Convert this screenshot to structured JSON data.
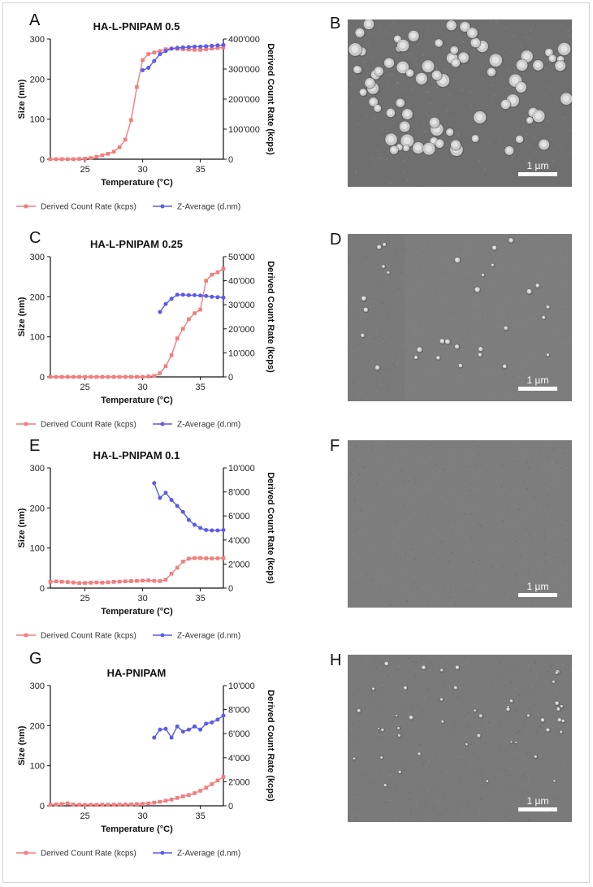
{
  "panel_letters": [
    "A",
    "B",
    "C",
    "D",
    "E",
    "F",
    "G",
    "H"
  ],
  "legend": {
    "red_label": "Derived Count Rate (kcps)",
    "blue_label": "Z-Average (d.nm)"
  },
  "colors": {
    "red": "#f27e7e",
    "blue": "#5b5bea",
    "sem_bg": "#7c7c7c"
  },
  "scale_bar_label": "1 µm",
  "chart_data": [
    {
      "type": "line",
      "title": "HA-L-PNIPAM 0.5",
      "xlabel": "Temperature (°C)",
      "ylabel_left": "Size (nm)",
      "ylabel_right": "Derived Count Rate (kcps)",
      "xlim": [
        22,
        37
      ],
      "ylim_left": [
        0,
        300
      ],
      "ylim_right": [
        0,
        400000
      ],
      "xticks": [
        25,
        30,
        35
      ],
      "yticks_left": [
        0,
        100,
        200,
        300
      ],
      "yticks_right": [
        0,
        100000,
        200000,
        300000,
        400000
      ],
      "yticks_right_labels": [
        "0",
        "100'000",
        "200'000",
        "300'000",
        "400'000"
      ],
      "series": [
        {
          "name": "Derived Count Rate (kcps)",
          "axis": "right",
          "color": "red",
          "x": [
            22,
            22.5,
            23,
            23.5,
            24,
            24.5,
            25,
            25.5,
            26,
            26.5,
            27,
            27.5,
            28,
            28.5,
            29,
            29.5,
            30,
            30.5,
            31,
            31.5,
            32,
            32.5,
            33,
            33.5,
            34,
            34.5,
            35,
            35.5,
            36,
            36.5,
            37
          ],
          "y": [
            0,
            0,
            0,
            0,
            0,
            1000,
            2000,
            4000,
            8000,
            13000,
            18000,
            25000,
            40000,
            65000,
            130000,
            240000,
            330000,
            350000,
            355000,
            360000,
            366000,
            368000,
            367000,
            366000,
            365000,
            364000,
            364000,
            366000,
            368000,
            370000,
            372000
          ]
        },
        {
          "name": "Z-Average (d.nm)",
          "axis": "left",
          "color": "blue",
          "x": [
            30,
            30.5,
            31,
            31.5,
            32,
            32.5,
            33,
            33.5,
            34,
            34.5,
            35,
            35.5,
            36,
            36.5,
            37
          ],
          "y": [
            222,
            228,
            245,
            262,
            270,
            276,
            278,
            279,
            280,
            281,
            281,
            282,
            283,
            284,
            285
          ]
        }
      ]
    },
    {
      "type": "line",
      "title": "HA-L-PNIPAM 0.25",
      "xlabel": "Temperature (°C)",
      "ylabel_left": "Size (nm)",
      "ylabel_right": "Derived Count Rate (kcps)",
      "xlim": [
        22,
        37
      ],
      "ylim_left": [
        0,
        300
      ],
      "ylim_right": [
        0,
        50000
      ],
      "xticks": [
        25,
        30,
        35
      ],
      "yticks_left": [
        0,
        100,
        200,
        300
      ],
      "yticks_right": [
        0,
        10000,
        20000,
        30000,
        40000,
        50000
      ],
      "yticks_right_labels": [
        "0",
        "10'000",
        "20'000",
        "30'000",
        "40'000",
        "50'000"
      ],
      "series": [
        {
          "name": "Derived Count Rate (kcps)",
          "axis": "right",
          "color": "red",
          "x": [
            22,
            22.5,
            23,
            23.5,
            24,
            24.5,
            25,
            25.5,
            26,
            26.5,
            27,
            27.5,
            28,
            28.5,
            29,
            29.5,
            30,
            30.5,
            31,
            31.5,
            32,
            32.5,
            33,
            33.5,
            34,
            34.5,
            35,
            35.5,
            36,
            36.5,
            37
          ],
          "y": [
            0,
            0,
            0,
            0,
            0,
            0,
            0,
            0,
            0,
            0,
            0,
            0,
            0,
            0,
            0,
            0,
            0,
            200,
            400,
            1500,
            4500,
            9000,
            16000,
            20000,
            24000,
            26500,
            28000,
            40000,
            42500,
            43500,
            45000
          ]
        },
        {
          "name": "Z-Average (d.nm)",
          "axis": "left",
          "color": "blue",
          "x": [
            31.5,
            32,
            32.5,
            33,
            33.5,
            34,
            34.5,
            35,
            35.5,
            36,
            36.5,
            37
          ],
          "y": [
            162,
            182,
            195,
            205,
            205,
            204,
            204,
            203,
            202,
            200,
            199,
            198
          ]
        }
      ]
    },
    {
      "type": "line",
      "title": "HA-L-PNIPAM 0.1",
      "xlabel": "Temperature (°C)",
      "ylabel_left": "Size (nm)",
      "ylabel_right": "Derived Count Rate (kcps)",
      "xlim": [
        22,
        37
      ],
      "ylim_left": [
        0,
        300
      ],
      "ylim_right": [
        0,
        10000
      ],
      "xticks": [
        25,
        30,
        35
      ],
      "yticks_left": [
        0,
        100,
        200,
        300
      ],
      "yticks_right": [
        0,
        2000,
        4000,
        6000,
        8000,
        10000
      ],
      "yticks_right_labels": [
        "0",
        "2'000",
        "4'000",
        "6'000",
        "8'000",
        "10'000"
      ],
      "series": [
        {
          "name": "Derived Count Rate (kcps)",
          "axis": "right",
          "color": "red",
          "x": [
            22,
            22.5,
            23,
            23.5,
            24,
            24.5,
            25,
            25.5,
            26,
            26.5,
            27,
            27.5,
            28,
            28.5,
            29,
            29.5,
            30,
            30.5,
            31,
            31.5,
            32,
            32.5,
            33,
            33.5,
            34,
            34.5,
            35,
            35.5,
            36,
            36.5,
            37
          ],
          "y": [
            520,
            560,
            530,
            500,
            460,
            420,
            430,
            450,
            470,
            450,
            480,
            520,
            540,
            560,
            580,
            600,
            620,
            640,
            600,
            580,
            700,
            1200,
            1700,
            2200,
            2450,
            2500,
            2500,
            2480,
            2470,
            2480,
            2500
          ]
        },
        {
          "name": "Z-Average (d.nm)",
          "axis": "left",
          "color": "blue",
          "x": [
            31,
            31.5,
            32,
            32.5,
            33,
            33.5,
            34,
            34.5,
            35,
            35.5,
            36,
            36.5,
            37
          ],
          "y": [
            262,
            225,
            238,
            220,
            205,
            190,
            170,
            158,
            150,
            145,
            144,
            144,
            145
          ]
        }
      ]
    },
    {
      "type": "line",
      "title": "HA-PNIPAM",
      "xlabel": "Temperature (°C)",
      "ylabel_left": "Size (nm)",
      "ylabel_right": "Derived Count Rate (kcps)",
      "xlim": [
        22,
        37
      ],
      "ylim_left": [
        0,
        300
      ],
      "ylim_right": [
        0,
        10000
      ],
      "xticks": [
        25,
        30,
        35
      ],
      "yticks_left": [
        0,
        100,
        200,
        300
      ],
      "yticks_right": [
        0,
        2000,
        4000,
        6000,
        8000,
        10000
      ],
      "yticks_right_labels": [
        "0",
        "2'000",
        "4'000",
        "6'000",
        "8'000",
        "10'000"
      ],
      "series": [
        {
          "name": "Derived Count Rate (kcps)",
          "axis": "right",
          "color": "red",
          "x": [
            22,
            22.5,
            23,
            23.5,
            24,
            24.5,
            25,
            25.5,
            26,
            26.5,
            27,
            27.5,
            28,
            28.5,
            29,
            29.5,
            30,
            30.5,
            31,
            31.5,
            32,
            32.5,
            33,
            33.5,
            34,
            34.5,
            35,
            35.5,
            36,
            36.5,
            37
          ],
          "y": [
            80,
            120,
            150,
            200,
            100,
            90,
            80,
            80,
            80,
            90,
            90,
            90,
            100,
            110,
            120,
            140,
            160,
            200,
            260,
            330,
            420,
            520,
            650,
            780,
            900,
            1050,
            1250,
            1500,
            1800,
            2100,
            2400
          ]
        },
        {
          "name": "Z-Average (d.nm)",
          "axis": "left",
          "color": "blue",
          "x": [
            31,
            31.5,
            32,
            32.5,
            33,
            33.5,
            34,
            34.5,
            35,
            35.5,
            36,
            36.5,
            37
          ],
          "y": [
            170,
            190,
            192,
            170,
            198,
            185,
            190,
            198,
            190,
            205,
            208,
            215,
            225
          ]
        }
      ]
    }
  ]
}
